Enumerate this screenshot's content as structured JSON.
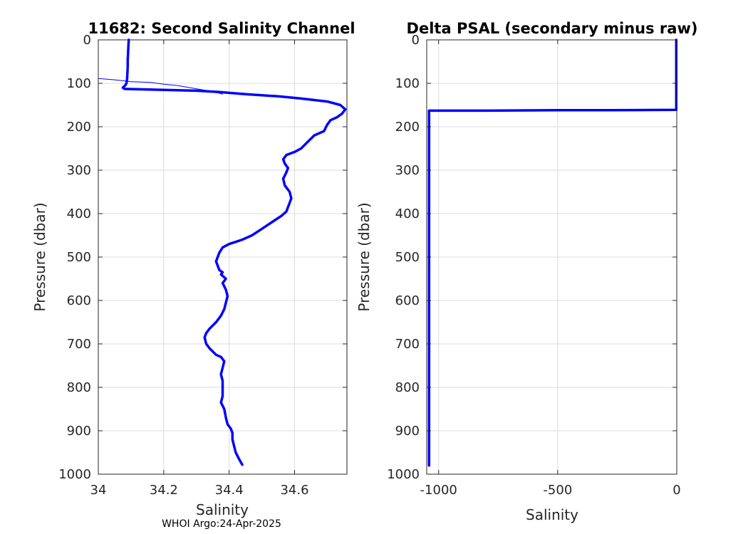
{
  "figure_footer": "WHOI Argo:24-Apr-2025",
  "chart_data": [
    {
      "type": "line",
      "title": "11682: Second Salinity Channel",
      "xlabel": "Salinity",
      "ylabel": "Pressure (dbar)",
      "xlim": [
        34.0,
        34.76
      ],
      "ylim": [
        0,
        1000
      ],
      "y_reversed": true,
      "grid": true,
      "xticks": [
        34.0,
        34.2,
        34.4,
        34.6
      ],
      "xtick_labels": [
        "34",
        "34.2",
        "34.4",
        "34.6"
      ],
      "yticks": [
        0,
        100,
        200,
        300,
        400,
        500,
        600,
        700,
        800,
        900,
        1000
      ],
      "ytick_labels": [
        "0",
        "100",
        "200",
        "300",
        "400",
        "500",
        "600",
        "700",
        "800",
        "900",
        "1000"
      ],
      "series": [
        {
          "line_width": "thick",
          "color": "#0000ff",
          "x": [
            34.093,
            34.092,
            34.091,
            34.09,
            34.09,
            34.089,
            34.088,
            34.086,
            34.082,
            34.075,
            34.08,
            34.2,
            34.3,
            34.37,
            34.45,
            34.55,
            34.62,
            34.7,
            34.74,
            34.755,
            34.745,
            34.73,
            34.71,
            34.7,
            34.69,
            34.66,
            34.64,
            34.62,
            34.6,
            34.575,
            34.565,
            34.57,
            34.58,
            34.575,
            34.565,
            34.57,
            34.585,
            34.59,
            34.585,
            34.58,
            34.575,
            34.56,
            34.54,
            34.52,
            34.5,
            34.47,
            34.44,
            34.42,
            34.4,
            34.38,
            34.37,
            34.365,
            34.36,
            34.365,
            34.37,
            34.38,
            34.375,
            34.39,
            34.38,
            34.39,
            34.395,
            34.39,
            34.385,
            34.375,
            34.36,
            34.34,
            34.33,
            34.325,
            34.33,
            34.34,
            34.36,
            34.375,
            34.385,
            34.38,
            34.375,
            34.38,
            34.38,
            34.38,
            34.375,
            34.385,
            34.39,
            34.395,
            34.405,
            34.41,
            34.41,
            34.415,
            34.42,
            34.43,
            34.44
          ],
          "y": [
            0,
            15,
            30,
            45,
            60,
            75,
            90,
            100,
            105,
            110,
            113,
            115,
            117,
            120,
            125,
            130,
            135,
            142,
            150,
            160,
            170,
            178,
            185,
            195,
            210,
            220,
            235,
            250,
            258,
            265,
            275,
            285,
            295,
            305,
            320,
            335,
            350,
            365,
            375,
            385,
            395,
            405,
            415,
            425,
            435,
            450,
            460,
            465,
            470,
            478,
            490,
            500,
            510,
            520,
            530,
            535,
            540,
            550,
            560,
            575,
            590,
            605,
            620,
            635,
            650,
            665,
            675,
            685,
            700,
            710,
            725,
            730,
            740,
            755,
            770,
            785,
            800,
            820,
            835,
            850,
            870,
            885,
            895,
            905,
            920,
            935,
            950,
            965,
            978
          ]
        },
        {
          "line_width": "thin",
          "color": "#0000ff",
          "x": [
            34.0,
            34.0,
            34.0,
            34.0,
            34.0,
            34.0,
            34.0,
            34.0,
            34.001,
            34.05,
            34.1,
            34.16,
            34.2,
            34.24,
            34.28,
            34.31,
            34.335,
            34.35,
            34.365,
            34.38
          ],
          "y": [
            0,
            20,
            40,
            60,
            70,
            80,
            87,
            88,
            89,
            92,
            96,
            98,
            102,
            105,
            110,
            114,
            117,
            120,
            122,
            125
          ]
        }
      ]
    },
    {
      "type": "line",
      "title": "Delta PSAL (secondary minus raw)",
      "xlabel": "Salinity",
      "ylabel": "Pressure (dbar)",
      "xlim": [
        -1050,
        0
      ],
      "ylim": [
        0,
        1000
      ],
      "y_reversed": true,
      "grid": true,
      "xticks": [
        -1000,
        -500,
        0
      ],
      "xtick_labels": [
        "-1000",
        "-500",
        "0"
      ],
      "yticks": [
        0,
        100,
        200,
        300,
        400,
        500,
        600,
        700,
        800,
        900,
        1000
      ],
      "ytick_labels": [
        "0",
        "100",
        "200",
        "300",
        "400",
        "500",
        "600",
        "700",
        "800",
        "900",
        "1000"
      ],
      "series": [
        {
          "line_width": "thick",
          "color": "#0000ff",
          "x": [
            -2,
            -2,
            -2,
            -2,
            -280,
            -500,
            -800,
            -1040,
            -1040,
            -1040,
            -1040
          ],
          "y": [
            0,
            60,
            120,
            161,
            162,
            162,
            163,
            163,
            400,
            800,
            980
          ]
        }
      ]
    }
  ]
}
